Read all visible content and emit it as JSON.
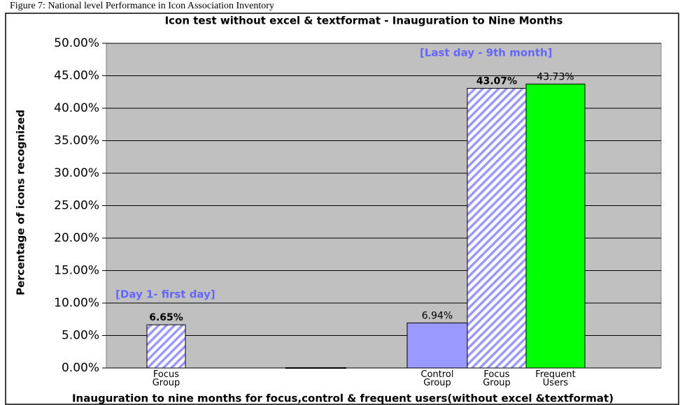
{
  "caption": "Figure 7: National level Performance in Icon Association Inventory",
  "chart_data": {
    "type": "bar",
    "title": "Icon test without excel & textformat - Inauguration to Nine Months",
    "x_label": "Inauguration to nine months for focus,control & frequent users(without excel &textformat)",
    "y_label": "Percentage of icons recognized",
    "annotations": [
      "[Day 1- first day]",
      "[Last day - 9th month]"
    ],
    "categories": [
      "Focus Group",
      "Control Group",
      "Focus Group",
      "Frequent Users"
    ],
    "values": [
      6.65,
      6.94,
      43.07,
      43.73
    ],
    "value_labels": [
      "6.65%",
      "6.94%",
      "43.07%",
      "43.73%"
    ],
    "colors": [
      "#9999ff",
      "#9999ff",
      "#9999ff",
      "#00ff00"
    ],
    "patterns": [
      "hatch",
      "solid",
      "hatch",
      "solid"
    ],
    "ylim": [
      0,
      50
    ],
    "yticks": [
      {
        "value": 0,
        "label": "0.00%"
      },
      {
        "value": 5,
        "label": "5.00%"
      },
      {
        "value": 10,
        "label": "10.00%"
      },
      {
        "value": 15,
        "label": "15.00%"
      },
      {
        "value": 20,
        "label": "20.00%"
      },
      {
        "value": 25,
        "label": "25.00%"
      },
      {
        "value": 30,
        "label": "30.00%"
      },
      {
        "value": 35,
        "label": "35.00%"
      },
      {
        "value": 40,
        "label": "40.00%"
      },
      {
        "value": 45,
        "label": "45.00%"
      },
      {
        "value": 50,
        "label": "50.00%"
      }
    ],
    "grid": true
  }
}
